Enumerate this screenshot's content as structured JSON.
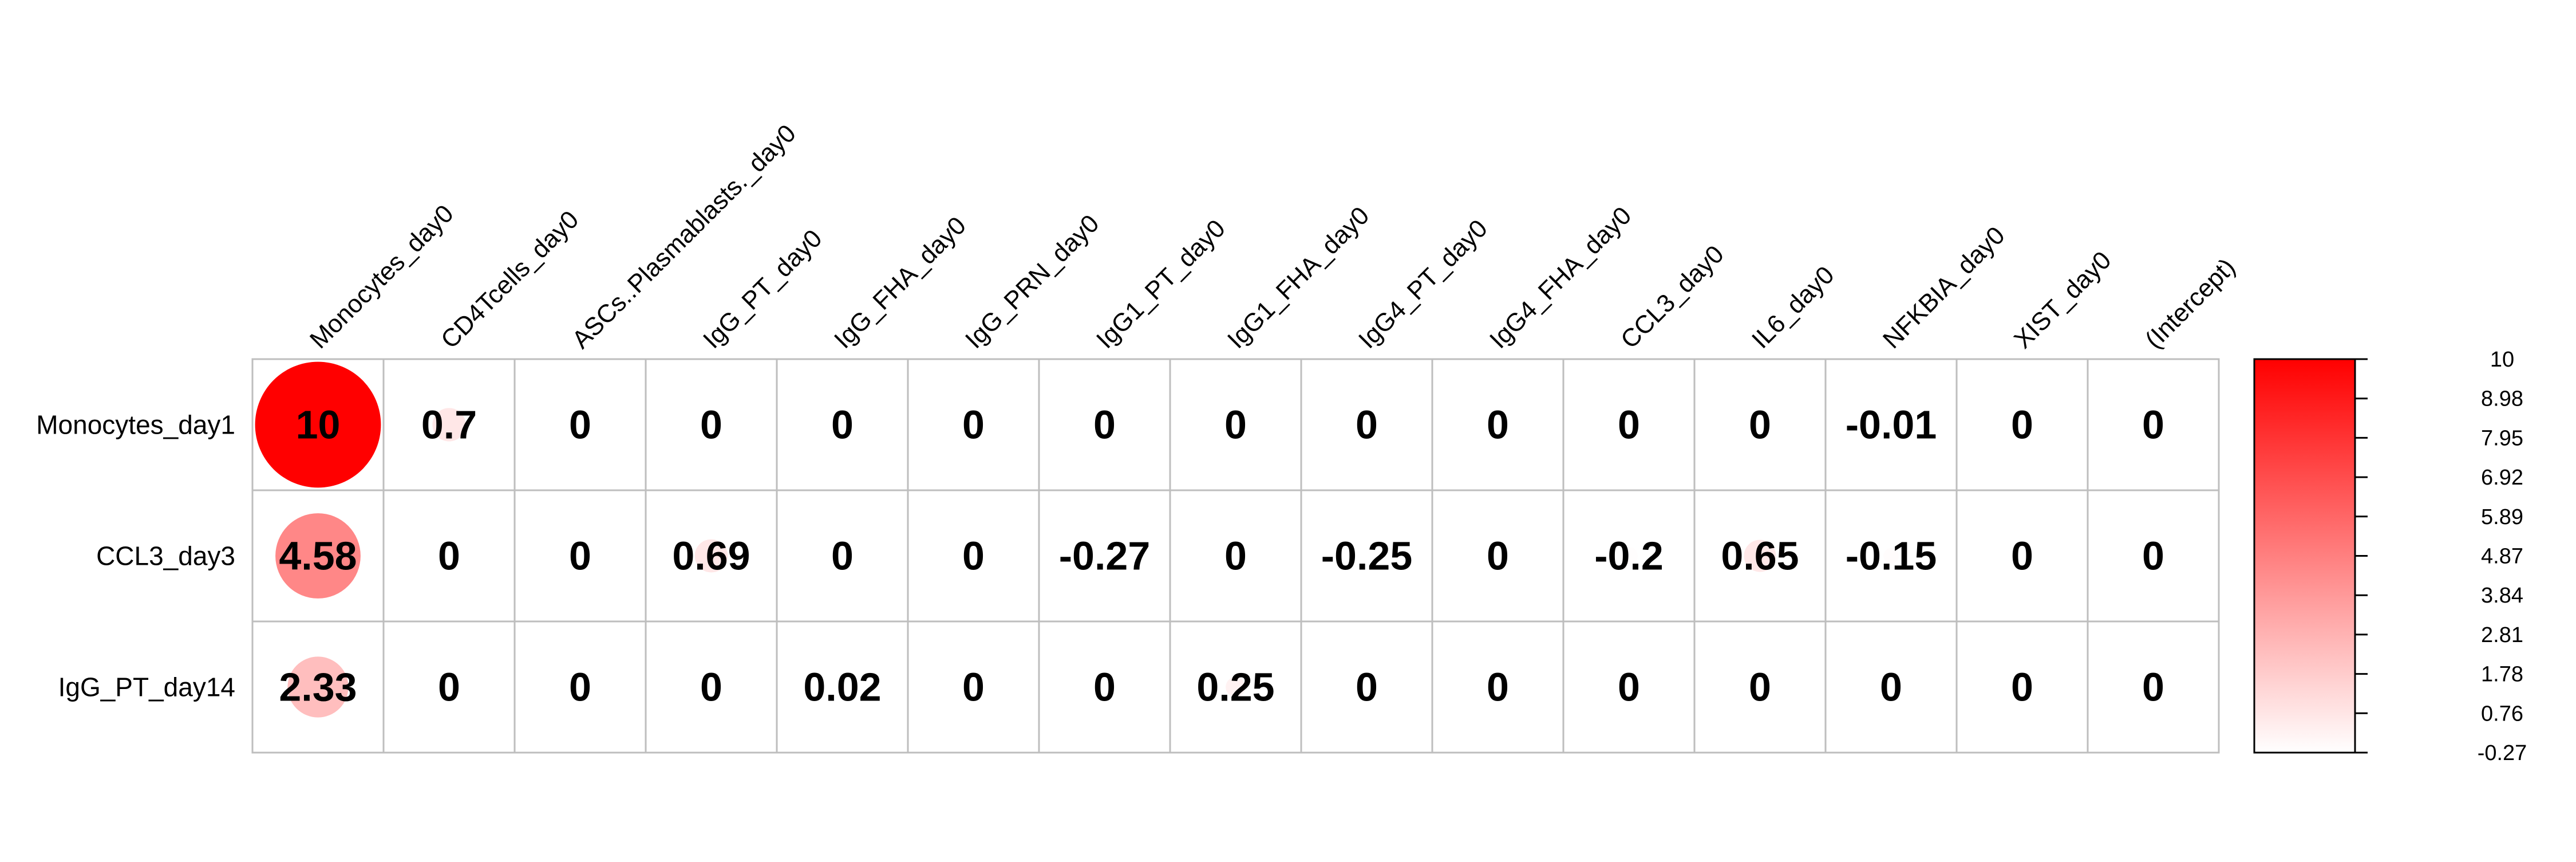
{
  "chart_data": {
    "type": "heatmap",
    "style": "corrplot-circle",
    "columns": [
      "Monocytes_day0",
      "CD4Tcells_day0",
      "ASCs..Plasmablasts._day0",
      "IgG_PT_day0",
      "IgG_FHA_day0",
      "IgG_PRN_day0",
      "IgG1_PT_day0",
      "IgG1_FHA_day0",
      "IgG4_PT_day0",
      "IgG4_FHA_day0",
      "CCL3_day0",
      "IL6_day0",
      "NFKBIA_day0",
      "XIST_day0",
      "(Intercept)"
    ],
    "rows": [
      "Monocytes_day1",
      "CCL3_day3",
      "IgG_PT_day14"
    ],
    "values": [
      [
        10,
        0.7,
        0,
        0,
        0,
        0,
        0,
        0,
        0,
        0,
        0,
        0,
        -0.01,
        0,
        0
      ],
      [
        4.58,
        0,
        0,
        0.69,
        0,
        0,
        -0.27,
        0,
        -0.25,
        0,
        -0.2,
        0.65,
        -0.15,
        0,
        0
      ],
      [
        2.33,
        0,
        0,
        0,
        0.02,
        0,
        0,
        0.25,
        0,
        0,
        0,
        0,
        0,
        0,
        0
      ]
    ],
    "cell_labels": [
      [
        "10",
        "0.7",
        "0",
        "0",
        "0",
        "0",
        "0",
        "0",
        "0",
        "0",
        "0",
        "0",
        "-0.01",
        "0",
        "0"
      ],
      [
        "4.58",
        "0",
        "0",
        "0.69",
        "0",
        "0",
        "-0.27",
        "0",
        "-0.25",
        "0",
        "-0.2",
        "0.65",
        "-0.15",
        "0",
        "0"
      ],
      [
        "2.33",
        "0",
        "0",
        "0",
        "0.02",
        "0",
        "0",
        "0.25",
        "0",
        "0",
        "0",
        "0",
        "0",
        "0",
        "0"
      ]
    ],
    "colorbar": {
      "min": -0.27,
      "max": 10,
      "ticks": [
        "10",
        "8.98",
        "7.95",
        "6.92",
        "5.89",
        "4.87",
        "3.84",
        "2.81",
        "1.78",
        "0.76",
        "-0.27"
      ],
      "color_low": "#ffffff",
      "color_high": "#ff0000"
    },
    "grid": true,
    "legend_position": "right"
  },
  "colors": {
    "grid": "#bebebe",
    "text": "#000000",
    "scale_high": "#ff0000",
    "scale_low": "#ffffff"
  }
}
